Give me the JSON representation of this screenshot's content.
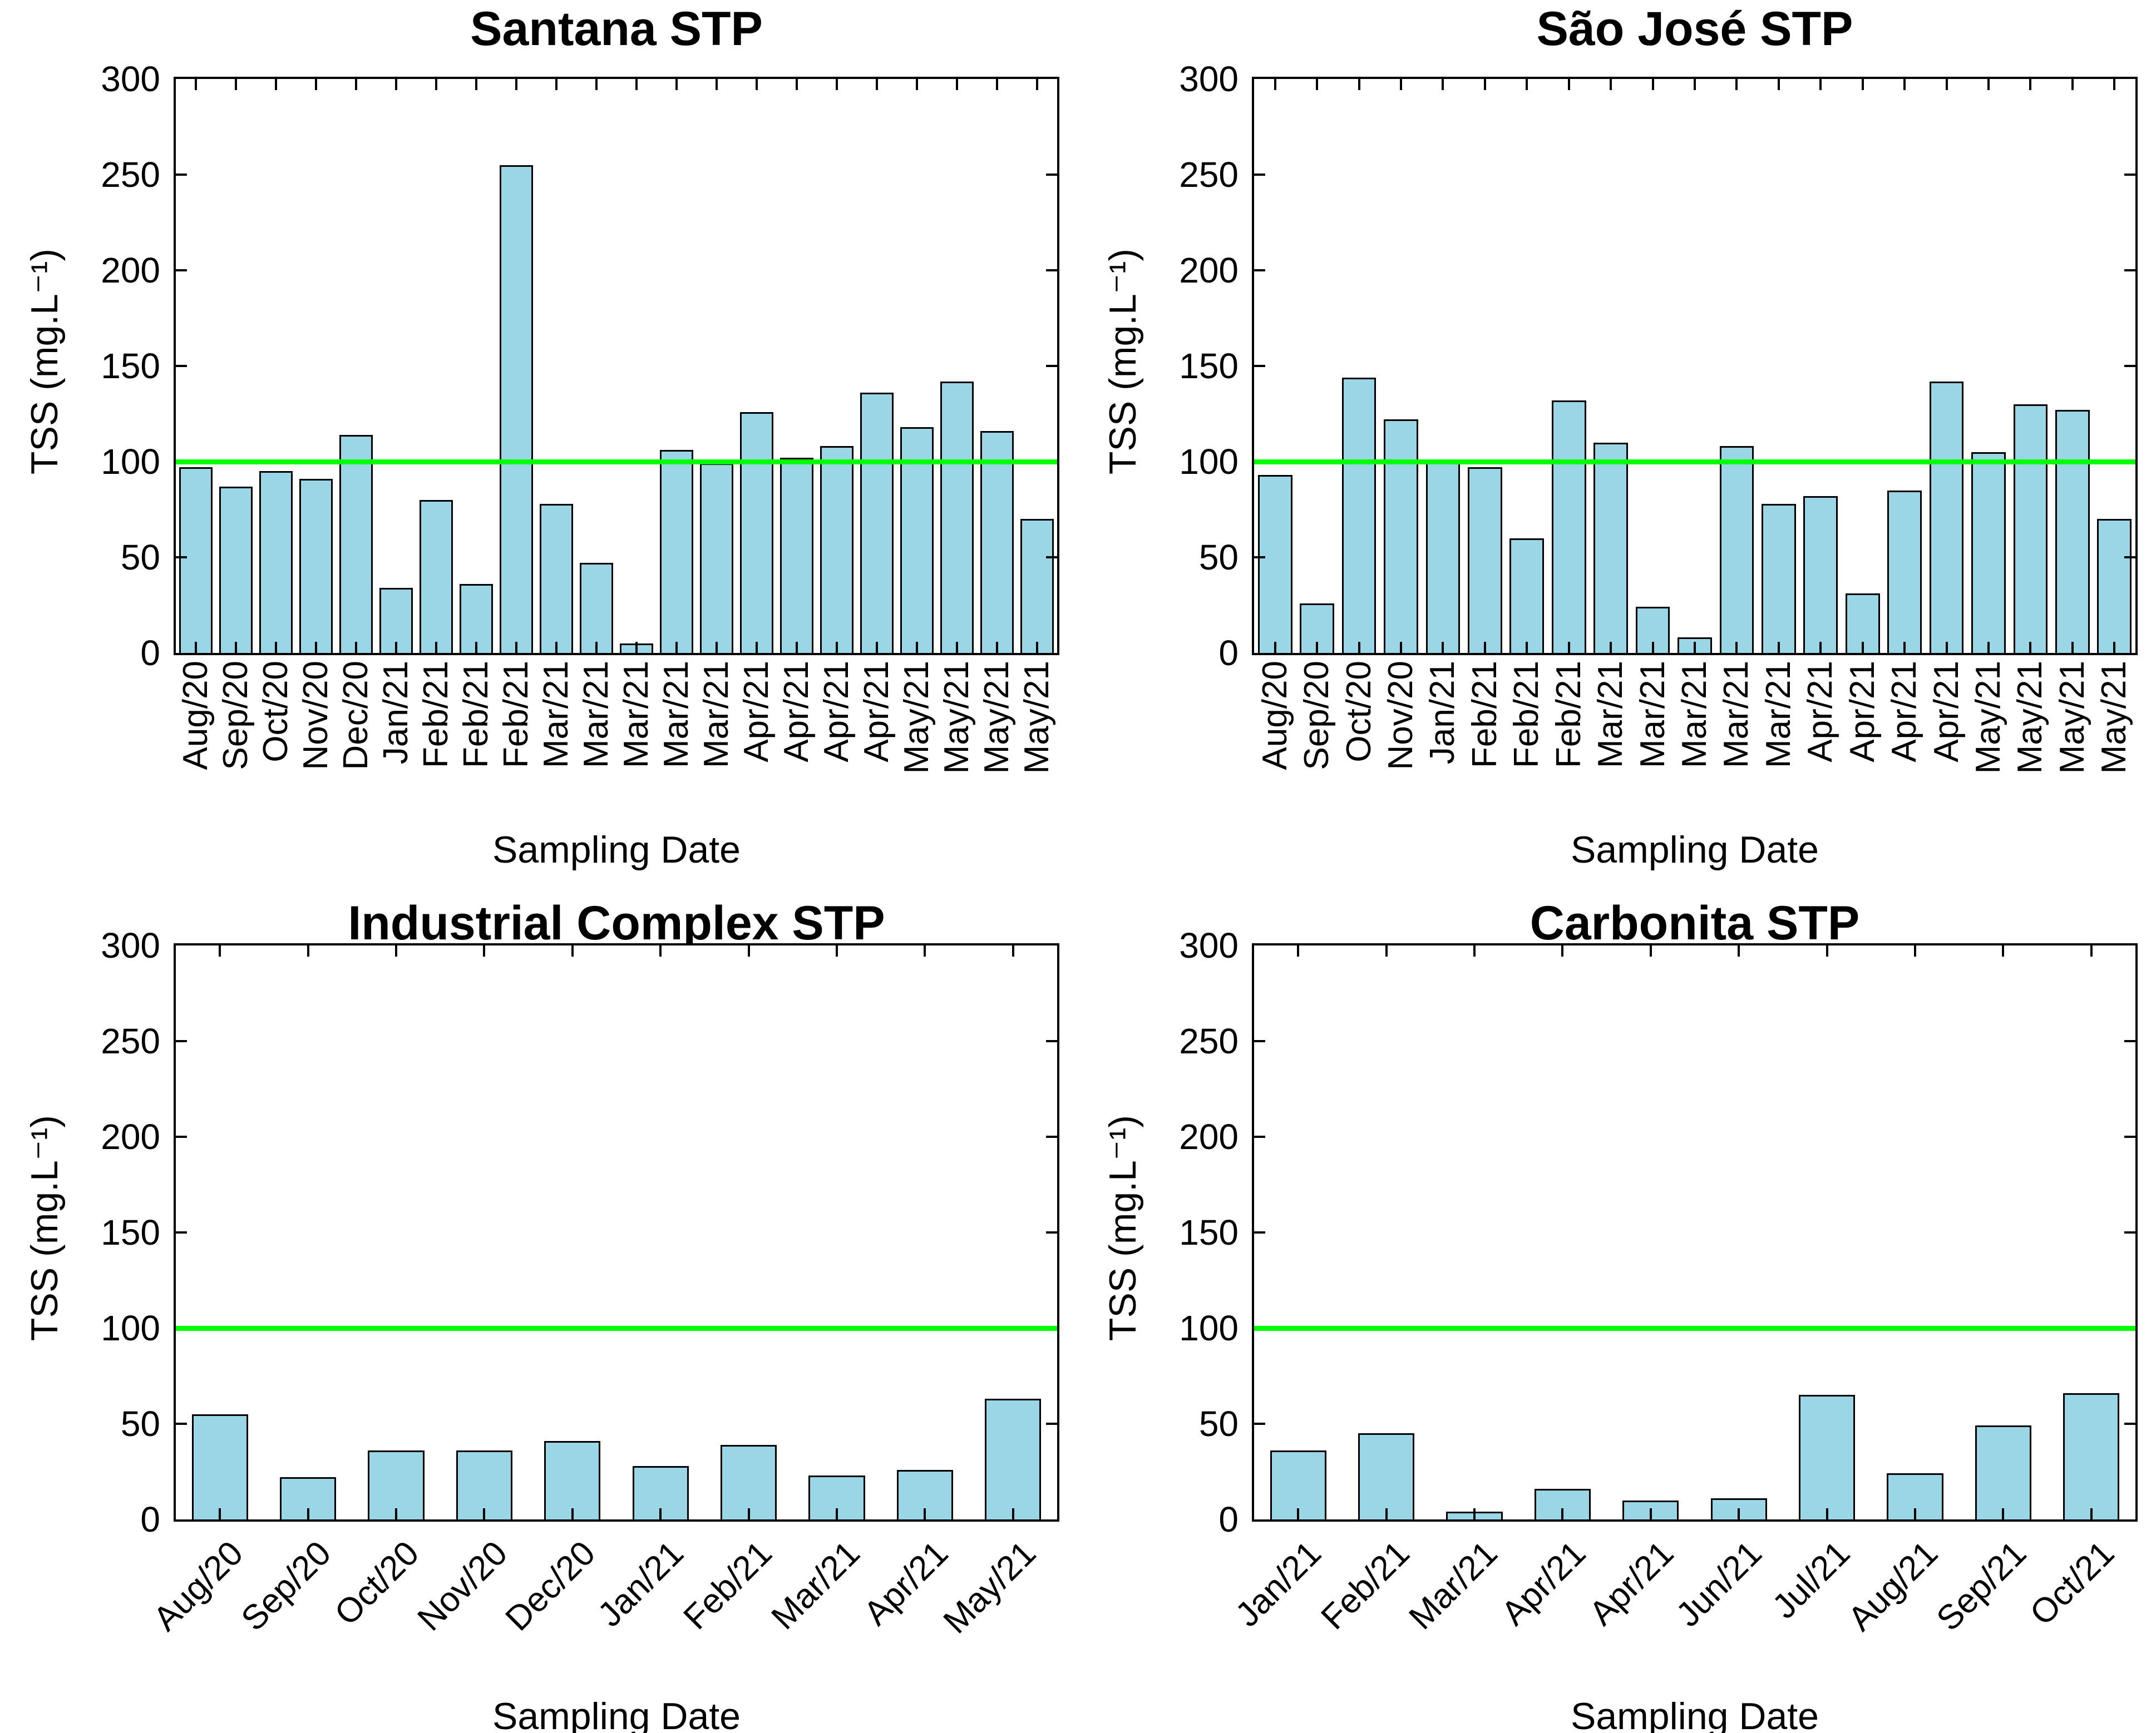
{
  "figure": {
    "background": "#ffffff",
    "text_color": "#000000",
    "axis_color": "#000000"
  },
  "chart_data": [
    {
      "type": "bar",
      "title": "Santana STP",
      "xlabel": "Sampling Date",
      "ylabel": "TSS (mg.L⁻¹)",
      "ylim": [
        0,
        300
      ],
      "yticks": [
        0,
        50,
        100,
        150,
        200,
        250,
        300
      ],
      "grid": false,
      "legend": "none",
      "x_tick_rotation": 90,
      "bar_color": "#9bd6e6",
      "bar_edge_color": "#000000",
      "bar_width_fraction": 0.82,
      "reference_line": {
        "y": 100,
        "color": "#00ff00"
      },
      "categories": [
        "Aug/20",
        "Sep/20",
        "Oct/20",
        "Nov/20",
        "Dec/20",
        "Jan/21",
        "Feb/21",
        "Feb/21",
        "Feb/21",
        "Mar/21",
        "Mar/21",
        "Mar/21",
        "Mar/21",
        "Mar/21",
        "Apr/21",
        "Apr/21",
        "Apr/21",
        "Apr/21",
        "May/21",
        "May/21",
        "May/21",
        "May/21"
      ],
      "values": [
        97,
        87,
        95,
        91,
        114,
        34,
        80,
        36,
        255,
        78,
        47,
        5,
        106,
        99,
        126,
        102,
        108,
        136,
        118,
        142,
        116,
        70
      ]
    },
    {
      "type": "bar",
      "title": "São José STP",
      "xlabel": "Sampling Date",
      "ylabel": "TSS (mg.L⁻¹)",
      "ylim": [
        0,
        300
      ],
      "yticks": [
        0,
        50,
        100,
        150,
        200,
        250,
        300
      ],
      "grid": false,
      "legend": "none",
      "x_tick_rotation": 90,
      "bar_color": "#9bd6e6",
      "bar_edge_color": "#000000",
      "bar_width_fraction": 0.82,
      "reference_line": {
        "y": 100,
        "color": "#00ff00"
      },
      "categories": [
        "Aug/20",
        "Sep/20",
        "Oct/20",
        "Nov/20",
        "Jan/21",
        "Feb/21",
        "Feb/21",
        "Feb/21",
        "Mar/21",
        "Mar/21",
        "Mar/21",
        "Mar/21",
        "Mar/21",
        "Apr/21",
        "Apr/21",
        "Apr/21",
        "Apr/21",
        "May/21",
        "May/21",
        "May/21",
        "May/21"
      ],
      "values": [
        93,
        26,
        144,
        122,
        100,
        97,
        60,
        132,
        110,
        24,
        8,
        108,
        78,
        82,
        31,
        85,
        142,
        105,
        130,
        127,
        70
      ]
    },
    {
      "type": "bar",
      "title": "Industrial Complex STP",
      "xlabel": "Sampling Date",
      "ylabel": "TSS (mg.L⁻¹)",
      "ylim": [
        0,
        300
      ],
      "yticks": [
        0,
        50,
        100,
        150,
        200,
        250,
        300
      ],
      "grid": false,
      "legend": "none",
      "x_tick_rotation": 45,
      "bar_color": "#9bd6e6",
      "bar_edge_color": "#000000",
      "bar_width_fraction": 0.64,
      "reference_line": {
        "y": 100,
        "color": "#00ff00"
      },
      "categories": [
        "Aug/20",
        "Sep/20",
        "Oct/20",
        "Nov/20",
        "Dec/20",
        "Jan/21",
        "Feb/21",
        "Mar/21",
        "Apr/21",
        "May/21"
      ],
      "values": [
        55,
        22,
        36,
        36,
        41,
        28,
        39,
        23,
        26,
        63
      ]
    },
    {
      "type": "bar",
      "title": "Carbonita STP",
      "xlabel": "Sampling Date",
      "ylabel": "TSS (mg.L⁻¹)",
      "ylim": [
        0,
        300
      ],
      "yticks": [
        0,
        50,
        100,
        150,
        200,
        250,
        300
      ],
      "grid": false,
      "legend": "none",
      "x_tick_rotation": 45,
      "bar_color": "#9bd6e6",
      "bar_edge_color": "#000000",
      "bar_width_fraction": 0.64,
      "reference_line": {
        "y": 100,
        "color": "#00ff00"
      },
      "categories": [
        "Jan/21",
        "Feb/21",
        "Mar/21",
        "Apr/21",
        "Apr/21",
        "Jun/21",
        "Jul/21",
        "Aug/21",
        "Sep/21",
        "Oct/21"
      ],
      "values": [
        36,
        45,
        4,
        16,
        10,
        11,
        65,
        24,
        49,
        66
      ]
    }
  ]
}
